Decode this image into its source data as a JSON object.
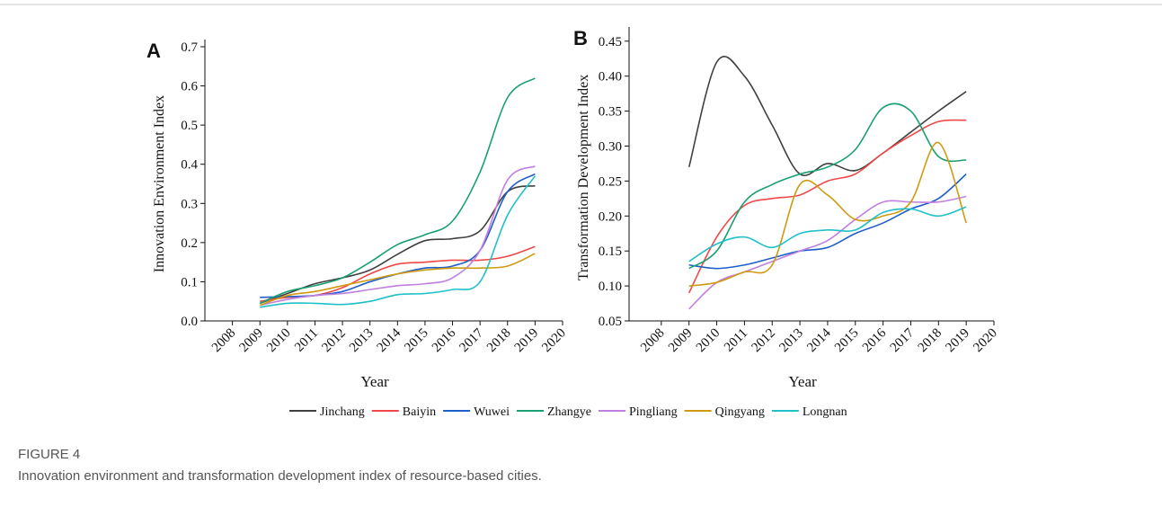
{
  "chart_data": [
    {
      "type": "line",
      "panel_label": "A",
      "x_label": "Year",
      "y_label": "Innovation Environment Index",
      "x": [
        2009,
        2010,
        2011,
        2012,
        2013,
        2014,
        2015,
        2016,
        2017,
        2018,
        2019
      ],
      "xlim": [
        2007,
        2020
      ],
      "xticks": [
        2008,
        2009,
        2010,
        2011,
        2012,
        2013,
        2014,
        2015,
        2016,
        2017,
        2018,
        2019,
        2020
      ],
      "ylim": [
        0,
        0.7
      ],
      "yticks": [
        {
          "value": 0,
          "label": "0.0"
        },
        0.1,
        0.2,
        0.3,
        0.4,
        0.5,
        0.6,
        0.7
      ],
      "series": [
        {
          "name": "Jinchang",
          "color": "#404040",
          "values": [
            0.045,
            0.07,
            0.095,
            0.11,
            0.13,
            0.17,
            0.205,
            0.21,
            0.23,
            0.33,
            0.345
          ]
        },
        {
          "name": "Baiyin",
          "color": "#f04848",
          "values": [
            0.05,
            0.06,
            0.065,
            0.085,
            0.12,
            0.145,
            0.15,
            0.155,
            0.155,
            0.165,
            0.19
          ]
        },
        {
          "name": "Wuwei",
          "color": "#1f5fc8",
          "values": [
            0.06,
            0.062,
            0.065,
            0.075,
            0.1,
            0.12,
            0.135,
            0.14,
            0.18,
            0.33,
            0.375
          ]
        },
        {
          "name": "Zhangye",
          "color": "#1aa070",
          "values": [
            0.045,
            0.075,
            0.09,
            0.11,
            0.15,
            0.195,
            0.22,
            0.255,
            0.38,
            0.57,
            0.62
          ]
        },
        {
          "name": "Pingliang",
          "color": "#c080e0",
          "values": [
            0.04,
            0.055,
            0.065,
            0.07,
            0.08,
            0.09,
            0.095,
            0.11,
            0.18,
            0.36,
            0.395
          ]
        },
        {
          "name": "Qingyang",
          "color": "#d09a10",
          "values": [
            0.04,
            0.065,
            0.075,
            0.09,
            0.105,
            0.12,
            0.13,
            0.135,
            0.135,
            0.14,
            0.172
          ]
        },
        {
          "name": "Longnan",
          "color": "#20c0c8",
          "values": [
            0.035,
            0.045,
            0.045,
            0.042,
            0.05,
            0.067,
            0.07,
            0.08,
            0.1,
            0.27,
            0.37
          ]
        }
      ]
    },
    {
      "type": "line",
      "panel_label": "B",
      "x_label": "Year",
      "y_label": "Transformation Development Index",
      "x": [
        2009,
        2010,
        2011,
        2012,
        2013,
        2014,
        2015,
        2016,
        2017,
        2018,
        2019
      ],
      "xlim": [
        2007,
        2020
      ],
      "xticks": [
        2008,
        2009,
        2010,
        2011,
        2012,
        2013,
        2014,
        2015,
        2016,
        2017,
        2018,
        2019,
        2020
      ],
      "ylim": [
        0.05,
        0.46
      ],
      "yticks": [
        0.05,
        {
          "value": 0.1,
          "label": "0.10"
        },
        0.15,
        {
          "value": 0.2,
          "label": "0.20"
        },
        0.25,
        {
          "value": 0.3,
          "label": "0.30"
        },
        0.35,
        {
          "value": 0.4,
          "label": "0.40"
        },
        0.45
      ],
      "series": [
        {
          "name": "Jinchang",
          "color": "#404040",
          "values": [
            0.27,
            0.42,
            0.4,
            0.33,
            0.26,
            0.275,
            0.265,
            0.29,
            0.32,
            0.35,
            0.378
          ]
        },
        {
          "name": "Baiyin",
          "color": "#f04848",
          "values": [
            0.09,
            0.17,
            0.215,
            0.225,
            0.23,
            0.25,
            0.26,
            0.29,
            0.315,
            0.335,
            0.337
          ]
        },
        {
          "name": "Wuwei",
          "color": "#1f5fc8",
          "values": [
            0.13,
            0.125,
            0.13,
            0.14,
            0.15,
            0.155,
            0.175,
            0.19,
            0.21,
            0.225,
            0.26
          ]
        },
        {
          "name": "Zhangye",
          "color": "#1aa070",
          "values": [
            0.125,
            0.15,
            0.22,
            0.245,
            0.26,
            0.27,
            0.295,
            0.355,
            0.35,
            0.285,
            0.28
          ]
        },
        {
          "name": "Pingliang",
          "color": "#c080e0",
          "values": [
            0.067,
            0.105,
            0.12,
            0.135,
            0.15,
            0.165,
            0.195,
            0.22,
            0.22,
            0.22,
            0.228
          ]
        },
        {
          "name": "Qingyang",
          "color": "#d09a10",
          "values": [
            0.1,
            0.105,
            0.12,
            0.13,
            0.245,
            0.23,
            0.195,
            0.2,
            0.22,
            0.305,
            0.19
          ]
        },
        {
          "name": "Longnan",
          "color": "#20c0c8",
          "values": [
            0.135,
            0.16,
            0.17,
            0.155,
            0.175,
            0.18,
            0.18,
            0.205,
            0.21,
            0.2,
            0.213
          ]
        }
      ]
    }
  ],
  "figure": {
    "label": "FIGURE 4",
    "caption": "Innovation environment and transformation development index of resource-based cities."
  }
}
